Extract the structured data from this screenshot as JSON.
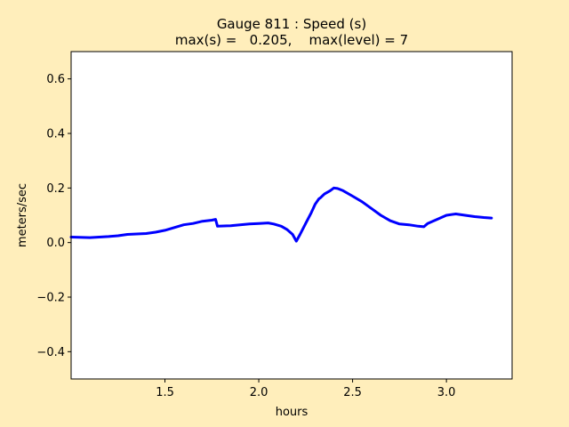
{
  "figure": {
    "background": "#ffeebb"
  },
  "chart_data": {
    "type": "line",
    "title_line1": "Gauge 811 : Speed (s)",
    "title_line2": "max(s) =   0.205,    max(level) = 7",
    "xlabel": "hours",
    "ylabel": "meters/sec",
    "xlim": [
      1.0,
      3.35
    ],
    "ylim": [
      -0.5,
      0.7
    ],
    "xticks": [
      1.5,
      2.0,
      2.5,
      3.0
    ],
    "xtick_labels": [
      "1.5",
      "2.0",
      "2.5",
      "3.0"
    ],
    "yticks": [
      -0.4,
      -0.2,
      0.0,
      0.2,
      0.4,
      0.6
    ],
    "ytick_labels": [
      "−0.4",
      "−0.2",
      "0.0",
      "0.2",
      "0.4",
      "0.6"
    ],
    "grid": false,
    "line_color": "#0000ff",
    "series": [
      {
        "x": [
          1.0,
          1.1,
          1.2,
          1.25,
          1.3,
          1.4,
          1.45,
          1.5,
          1.55,
          1.6,
          1.65,
          1.7,
          1.75,
          1.77,
          1.78,
          1.85,
          1.9,
          1.95,
          2.0,
          2.05,
          2.08,
          2.12,
          2.15,
          2.18,
          2.2,
          2.22,
          2.25,
          2.28,
          2.3,
          2.32,
          2.33,
          2.35,
          2.38,
          2.4,
          2.42,
          2.45,
          2.5,
          2.55,
          2.6,
          2.65,
          2.7,
          2.75,
          2.8,
          2.85,
          2.88,
          2.9,
          2.95,
          3.0,
          3.05,
          3.1,
          3.15,
          3.2,
          3.24
        ],
        "y": [
          0.02,
          0.018,
          0.022,
          0.025,
          0.03,
          0.033,
          0.038,
          0.045,
          0.055,
          0.065,
          0.07,
          0.078,
          0.082,
          0.085,
          0.06,
          0.062,
          0.065,
          0.068,
          0.07,
          0.072,
          0.068,
          0.06,
          0.048,
          0.03,
          0.005,
          0.03,
          0.07,
          0.11,
          0.14,
          0.16,
          0.165,
          0.178,
          0.19,
          0.2,
          0.198,
          0.19,
          0.17,
          0.15,
          0.125,
          0.1,
          0.08,
          0.068,
          0.065,
          0.06,
          0.058,
          0.07,
          0.085,
          0.1,
          0.105,
          0.1,
          0.095,
          0.092,
          0.09
        ]
      }
    ]
  }
}
